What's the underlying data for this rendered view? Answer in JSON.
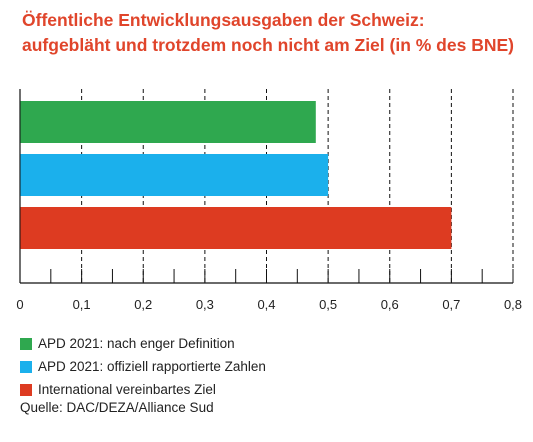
{
  "chart_data": {
    "type": "bar",
    "orientation": "horizontal",
    "title_lines": [
      "Öffentliche Entwicklungsausgaben der Schweiz:",
      "aufgebläht und trotzdem noch nicht am Ziel (in % des BNE)"
    ],
    "series": [
      {
        "name": "APD 2021: nach enger Definition",
        "value": 0.48,
        "color": "#2fa84f"
      },
      {
        "name": "APD 2021: offiziell rapportierte Zahlen",
        "value": 0.5,
        "color": "#1bb0ec"
      },
      {
        "name": "International vereinbartes Ziel",
        "value": 0.7,
        "color": "#dd3b21"
      }
    ],
    "xlim": [
      0,
      0.8
    ],
    "ticks": [
      "0",
      "0,1",
      "0,2",
      "0,3",
      "0,4",
      "0,5",
      "0,6",
      "0,7",
      "0,8"
    ],
    "minor_ticks_per_major": 2,
    "grid": "dashed vertical",
    "legend_position": "bottom-left",
    "source": "Quelle: DAC/DEZA/Alliance Sud"
  }
}
